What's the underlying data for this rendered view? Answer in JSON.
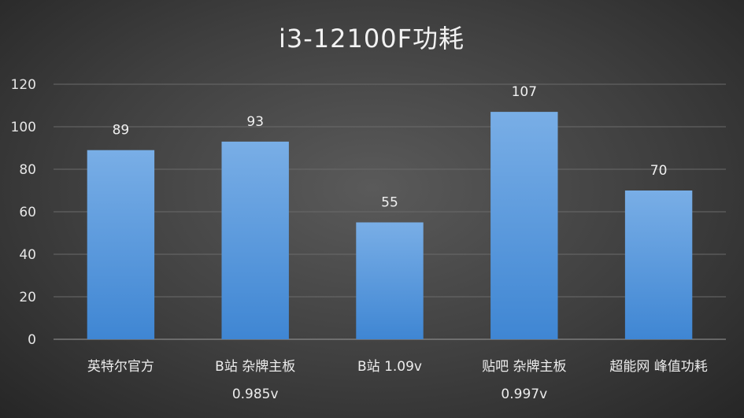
{
  "chart_data": {
    "type": "bar",
    "title": "i3-12100F功耗",
    "categories": [
      [
        "英特尔官方"
      ],
      [
        "B站 杂牌主板",
        "0.985v"
      ],
      [
        "B站 1.09v"
      ],
      [
        "贴吧 杂牌主板",
        "0.997v"
      ],
      [
        "超能网 峰值功耗"
      ]
    ],
    "values": [
      89,
      93,
      55,
      107,
      70
    ],
    "ylim": [
      0,
      120
    ],
    "yticks": [
      0,
      20,
      40,
      60,
      80,
      100,
      120
    ],
    "grid": true,
    "legend": "none",
    "colors": {
      "bar_top": "#79aee6",
      "bar_bottom": "#3f86d3",
      "grid": "#6a6a6a",
      "text": "#ececec"
    }
  }
}
